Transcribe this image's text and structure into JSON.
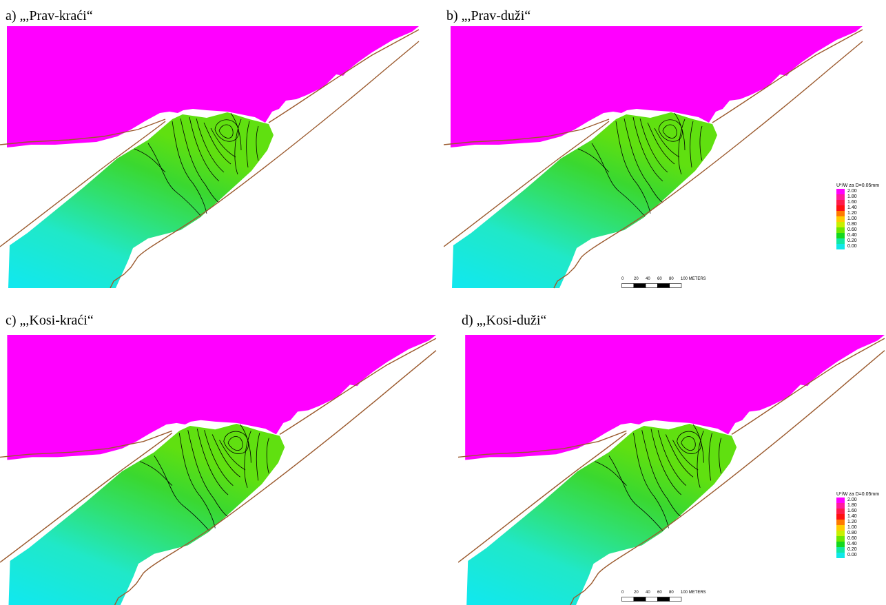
{
  "panels": [
    {
      "id": "a",
      "title": "a) „,Prav-kraći“"
    },
    {
      "id": "b",
      "title": "b) „,Prav-duži“"
    },
    {
      "id": "c",
      "title": "c) „,Kosi-kraći“"
    },
    {
      "id": "d",
      "title": "d) „,Kosi-duži“"
    }
  ],
  "legend": {
    "title": "U*/W za D=0.05mm",
    "entries": [
      {
        "label": "2.00",
        "color": "#ff00ff"
      },
      {
        "label": "1.80",
        "color": "#ff1a9c"
      },
      {
        "label": "1.60",
        "color": "#ff1a4a"
      },
      {
        "label": "1.40",
        "color": "#ff1010"
      },
      {
        "label": "1.20",
        "color": "#ff7a00"
      },
      {
        "label": "1.00",
        "color": "#ffcc00"
      },
      {
        "label": "0.80",
        "color": "#c8f000"
      },
      {
        "label": "0.60",
        "color": "#6ce800"
      },
      {
        "label": "0.40",
        "color": "#14d81e"
      },
      {
        "label": "0.20",
        "color": "#10e8a0"
      },
      {
        "label": "0.00",
        "color": "#10e8e8"
      }
    ]
  },
  "scale_bar": {
    "labels": [
      "0",
      "20",
      "40",
      "60",
      "80",
      "100 METERS"
    ]
  },
  "colors": {
    "land": "#ff00ff",
    "shore_line": "#9b5a2e",
    "contour_line": "#000000",
    "water_low": "#14e6f0"
  }
}
